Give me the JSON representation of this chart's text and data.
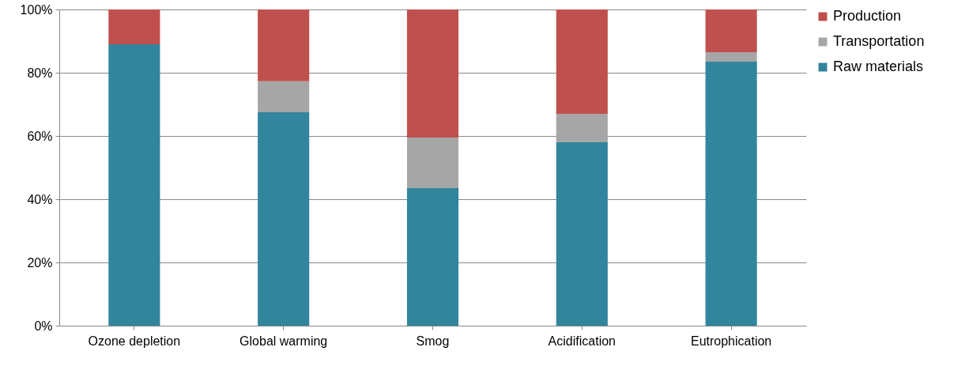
{
  "chart_data": {
    "type": "bar",
    "stacked": true,
    "categories": [
      "Ozone depletion",
      "Global warming",
      "Smog",
      "Acidification",
      "Eutrophication"
    ],
    "series": [
      {
        "name": "Raw materials",
        "color": "#31859c",
        "values": [
          89,
          67.5,
          43.5,
          58,
          83.5
        ]
      },
      {
        "name": "Transportation",
        "color": "#a6a6a6",
        "values": [
          0,
          9.8,
          16,
          9,
          3
        ]
      },
      {
        "name": "Production",
        "color": "#c0504d",
        "values": [
          11,
          22.7,
          40.5,
          33,
          13.5
        ]
      }
    ],
    "ylim": [
      0,
      100
    ],
    "yticks": [
      {
        "value": 0,
        "label": "0%"
      },
      {
        "value": 20,
        "label": "20%"
      },
      {
        "value": 40,
        "label": "40%"
      },
      {
        "value": 60,
        "label": "60%"
      },
      {
        "value": 80,
        "label": "80%"
      },
      {
        "value": 100,
        "label": "100%"
      }
    ],
    "grid": "y",
    "legend": "right"
  }
}
